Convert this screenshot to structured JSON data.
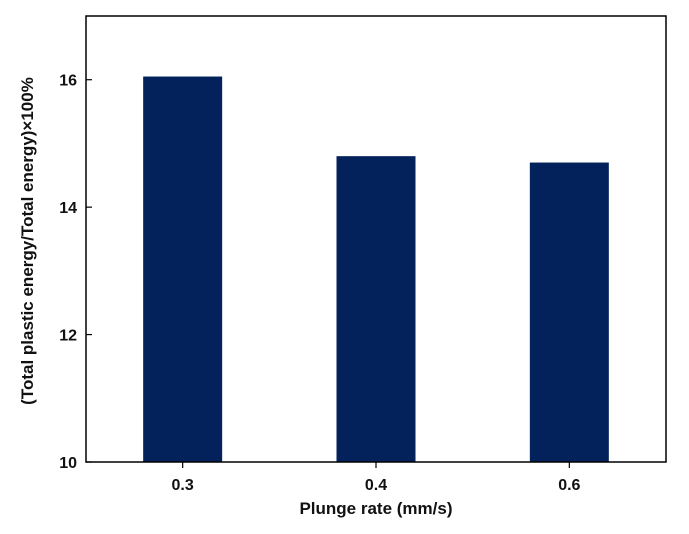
{
  "chart_data": {
    "type": "bar",
    "title": "",
    "categories": [
      "0.3",
      "0.4",
      "0.6"
    ],
    "values": [
      16.05,
      14.8,
      14.7
    ],
    "xlabel": "Plunge rate (mm/s)",
    "ylabel": "(Total plastic energy/Total energy)×100%",
    "ylim": [
      10,
      17
    ],
    "yticks": [
      "10",
      "12",
      "14",
      "16"
    ],
    "grid": false,
    "legend": "none",
    "bar_color": "#03215a"
  }
}
